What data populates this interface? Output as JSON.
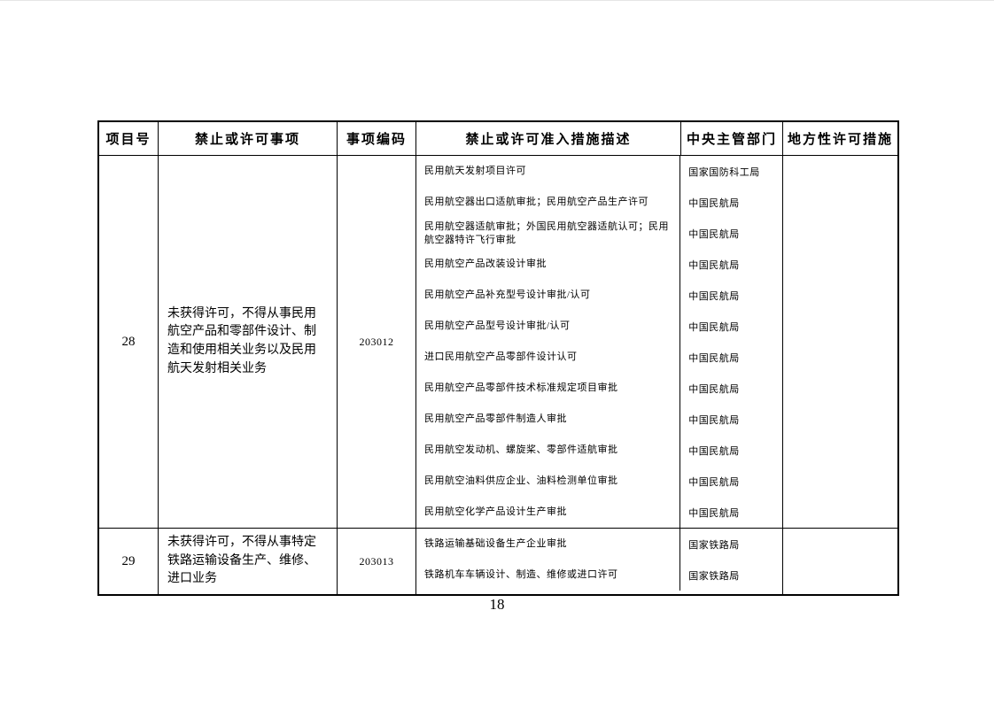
{
  "page": {
    "number": "18"
  },
  "table": {
    "headers": [
      "项目号",
      "禁止或许可事项",
      "事项编码",
      "禁止或许可准入措施描述",
      "中央主管部门",
      "地方性许可措施"
    ],
    "rows": [
      {
        "id": "28",
        "item": "未获得许可，不得从事民用航空产品和零部件设计、制造和使用相关业务以及民用航天发射相关业务",
        "code": "203012",
        "measures": [
          {
            "desc": "民用航天发射项目许可",
            "dept": "国家国防科工局"
          },
          {
            "desc": "民用航空器出口适航审批；民用航空产品生产许可",
            "dept": "中国民航局"
          },
          {
            "desc": "民用航空器适航审批；外国民用航空器适航认可；民用航空器特许飞行审批",
            "dept": "中国民航局"
          },
          {
            "desc": "民用航空产品改装设计审批",
            "dept": "中国民航局"
          },
          {
            "desc": "民用航空产品补充型号设计审批/认可",
            "dept": "中国民航局"
          },
          {
            "desc": "民用航空产品型号设计审批/认可",
            "dept": "中国民航局"
          },
          {
            "desc": "进口民用航空产品零部件设计认可",
            "dept": "中国民航局"
          },
          {
            "desc": "民用航空产品零部件技术标准规定项目审批",
            "dept": "中国民航局"
          },
          {
            "desc": "民用航空产品零部件制造人审批",
            "dept": "中国民航局"
          },
          {
            "desc": "民用航空发动机、螺旋桨、零部件适航审批",
            "dept": "中国民航局"
          },
          {
            "desc": "民用航空油料供应企业、油料检测单位审批",
            "dept": "中国民航局"
          },
          {
            "desc": "民用航空化学产品设计生产审批",
            "dept": "中国民航局"
          }
        ],
        "local": ""
      },
      {
        "id": "29",
        "item": "未获得许可，不得从事特定铁路运输设备生产、维修、进口业务",
        "code": "203013",
        "measures": [
          {
            "desc": "铁路运输基础设备生产企业审批",
            "dept": "国家铁路局"
          },
          {
            "desc": "铁路机车车辆设计、制造、维修或进口许可",
            "dept": "国家铁路局"
          }
        ],
        "local": ""
      }
    ]
  }
}
